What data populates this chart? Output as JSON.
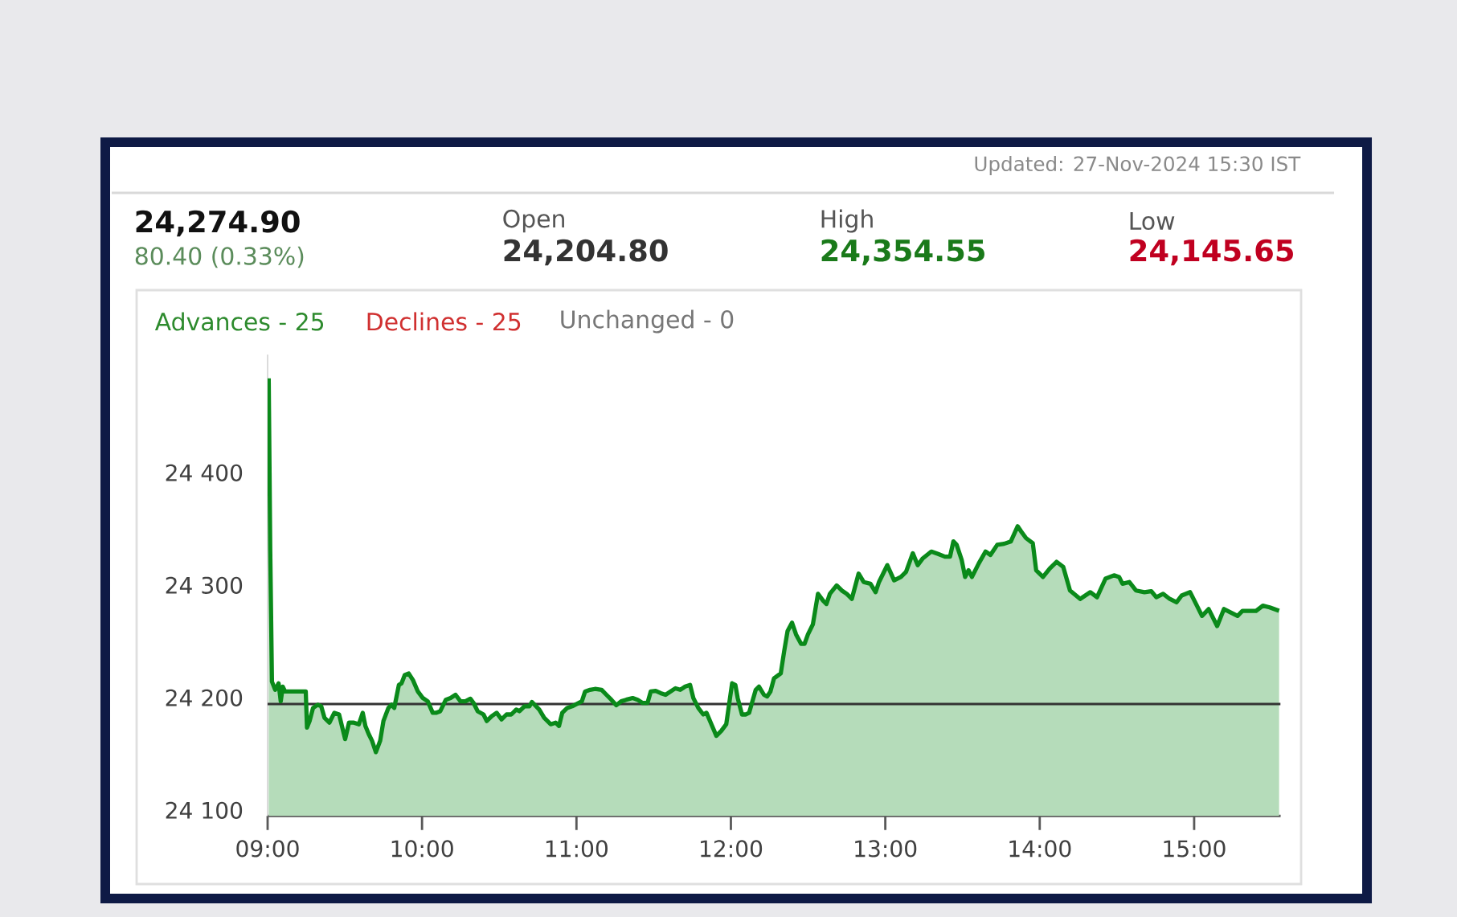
{
  "chart_data": {
    "type": "area",
    "annotations": [
      "Updated: 27-Nov-2024 15:30 IST",
      "24,274.90",
      "80.40 (0.33%)",
      "Open",
      "24,204.80",
      "High",
      "24,354.55",
      "Low",
      "24,145.65",
      "Advances - 25",
      "Declines - 25",
      "Unchanged - 0"
    ],
    "xlim": [
      9,
      15.56
    ],
    "ylim": [
      24095,
      24505
    ],
    "xticks": [
      {
        "value": 9,
        "label": "09:00"
      },
      {
        "value": 10,
        "label": "10:00"
      },
      {
        "value": 11,
        "label": "11:00"
      },
      {
        "value": 12,
        "label": "12:00"
      },
      {
        "value": 13,
        "label": "13:00"
      },
      {
        "value": 14,
        "label": "14:00"
      },
      {
        "value": 15,
        "label": "15:00"
      }
    ],
    "yticks": [
      {
        "value": 24100,
        "label": "24 100"
      },
      {
        "value": 24200,
        "label": "24 200"
      },
      {
        "value": 24300,
        "label": "24 300"
      },
      {
        "value": 24400,
        "label": "24 400"
      }
    ],
    "ref_lines": [
      {
        "axis": "y",
        "value": 24194.5,
        "color": "#333333"
      }
    ],
    "series": [
      {
        "color": "#0a8a1a",
        "x": [
          9.007,
          9.017,
          9.028,
          9.049,
          9.071,
          9.085,
          9.098,
          9.113,
          9.247,
          9.255,
          9.272,
          9.294,
          9.325,
          9.347,
          9.368,
          9.4,
          9.432,
          9.463,
          9.502,
          9.527,
          9.559,
          9.591,
          9.616,
          9.633,
          9.655,
          9.676,
          9.701,
          9.729,
          9.75,
          9.782,
          9.803,
          9.82,
          9.85,
          9.867,
          9.888,
          9.914,
          9.941,
          9.973,
          10.005,
          10.037,
          10.069,
          10.09,
          10.118,
          10.154,
          10.185,
          10.217,
          10.249,
          10.281,
          10.313,
          10.334,
          10.36,
          10.398,
          10.419,
          10.451,
          10.483,
          10.515,
          10.547,
          10.578,
          10.61,
          10.631,
          10.663,
          10.695,
          10.712,
          10.759,
          10.791,
          10.833,
          10.865,
          10.887,
          10.908,
          10.94,
          10.972,
          11.035,
          11.056,
          11.088,
          11.12,
          11.163,
          11.194,
          11.226,
          11.258,
          11.29,
          11.322,
          11.364,
          11.396,
          11.428,
          11.46,
          11.481,
          11.513,
          11.545,
          11.577,
          11.609,
          11.641,
          11.672,
          11.704,
          11.736,
          11.757,
          11.789,
          11.821,
          11.842,
          11.874,
          11.906,
          11.938,
          11.97,
          12.008,
          12.029,
          12.044,
          12.072,
          12.097,
          12.118,
          12.161,
          12.182,
          12.214,
          12.235,
          12.256,
          12.279,
          12.323,
          12.345,
          12.367,
          12.396,
          12.422,
          12.455,
          12.477,
          12.499,
          12.531,
          12.564,
          12.597,
          12.619,
          12.641,
          12.685,
          12.718,
          12.75,
          12.783,
          12.827,
          12.86,
          12.904,
          12.937,
          12.959,
          13.013,
          13.057,
          13.101,
          13.134,
          13.178,
          13.21,
          13.243,
          13.298,
          13.342,
          13.386,
          13.419,
          13.441,
          13.462,
          13.495,
          13.517,
          13.539,
          13.561,
          13.605,
          13.649,
          13.681,
          13.725,
          13.769,
          13.813,
          13.857,
          13.879,
          13.911,
          13.955,
          13.977,
          14.021,
          14.065,
          14.109,
          14.152,
          14.196,
          14.262,
          14.328,
          14.371,
          14.426,
          14.481,
          14.514,
          14.536,
          14.58,
          14.623,
          14.678,
          14.722,
          14.755,
          14.799,
          14.842,
          14.886,
          14.919,
          14.974,
          15.018,
          15.051,
          15.094,
          15.149,
          15.193,
          15.237,
          15.281,
          15.313,
          15.357,
          15.401,
          15.445,
          15.489,
          15.55
        ],
        "values": [
          24484.0,
          24331.0,
          24214.4,
          24207.1,
          24212.9,
          24196.9,
          24210.0,
          24205.6,
          24205.6,
          24173.5,
          24179.4,
          24191.0,
          24193.9,
          24192.5,
          24182.3,
          24177.9,
          24186.7,
          24185.2,
          24163.3,
          24177.9,
          24177.9,
          24176.5,
          24186.7,
          24175.0,
          24167.7,
          24161.9,
          24151.7,
          24161.9,
          24179.4,
          24191.0,
          24193.9,
          24191.0,
          24211.4,
          24212.9,
          24220.2,
          24221.6,
          24215.8,
          24205.6,
          24199.8,
          24196.9,
          24186.7,
          24186.7,
          24188.1,
          24198.3,
          24199.8,
          24202.7,
          24196.9,
          24196.9,
          24199.2,
          24195.4,
          24188.1,
          24185.2,
          24179.4,
          24183.7,
          24186.7,
          24180.8,
          24185.2,
          24185.2,
          24189.6,
          24188.1,
          24192.5,
          24192.5,
          24196.3,
          24189.6,
          24182.3,
          24176.5,
          24177.9,
          24175.0,
          24186.7,
          24191.0,
          24192.5,
          24196.9,
          24205.6,
          24207.1,
          24207.9,
          24207.1,
          24202.7,
          24198.3,
          24193.4,
          24196.9,
          24198.3,
          24199.8,
          24198.3,
          24195.4,
          24195.4,
          24205.6,
          24206.2,
          24204.2,
          24202.7,
          24205.6,
          24208.5,
          24207.1,
          24210.0,
          24211.4,
          24199.8,
          24191.0,
          24185.2,
          24186.7,
          24176.5,
          24166.2,
          24170.6,
          24176.5,
          24212.9,
          24211.4,
          24199.8,
          24185.2,
          24185.2,
          24186.7,
          24207.1,
          24210.0,
          24202.7,
          24201.2,
          24205.6,
          24217.2,
          24221.7,
          24241.3,
          24259.3,
          24266.8,
          24256.3,
          24247.9,
          24247.9,
          24256.3,
          24265.3,
          24292.4,
          24286.4,
          24283.4,
          24292.4,
          24299.9,
          24295.4,
          24292.4,
          24287.9,
          24310.4,
          24302.9,
          24301.4,
          24293.9,
          24302.9,
          24317.9,
          24304.4,
          24307.4,
          24311.9,
          24328.5,
          24317.9,
          24324.0,
          24330.0,
          24327.9,
          24325.5,
          24325.5,
          24339.0,
          24336.0,
          24322.4,
          24307.4,
          24313.4,
          24307.4,
          24319.4,
          24330.0,
          24327.0,
          24336.0,
          24336.9,
          24339.0,
          24352.5,
          24348.0,
          24342.0,
          24337.5,
          24313.4,
          24307.4,
          24314.9,
          24320.9,
          24316.4,
          24295.4,
          24287.9,
          24293.9,
          24289.4,
          24305.9,
          24308.9,
          24307.4,
          24301.4,
          24302.9,
          24295.4,
          24293.9,
          24294.8,
          24289.4,
          24292.4,
          24287.9,
          24284.9,
          24290.9,
          24293.9,
          24281.9,
          24272.8,
          24278.9,
          24263.8,
          24278.9,
          24275.8,
          24272.8,
          24277.3,
          24277.3,
          24277.3,
          24281.9,
          24280.4,
          24277.3
        ]
      }
    ]
  }
}
